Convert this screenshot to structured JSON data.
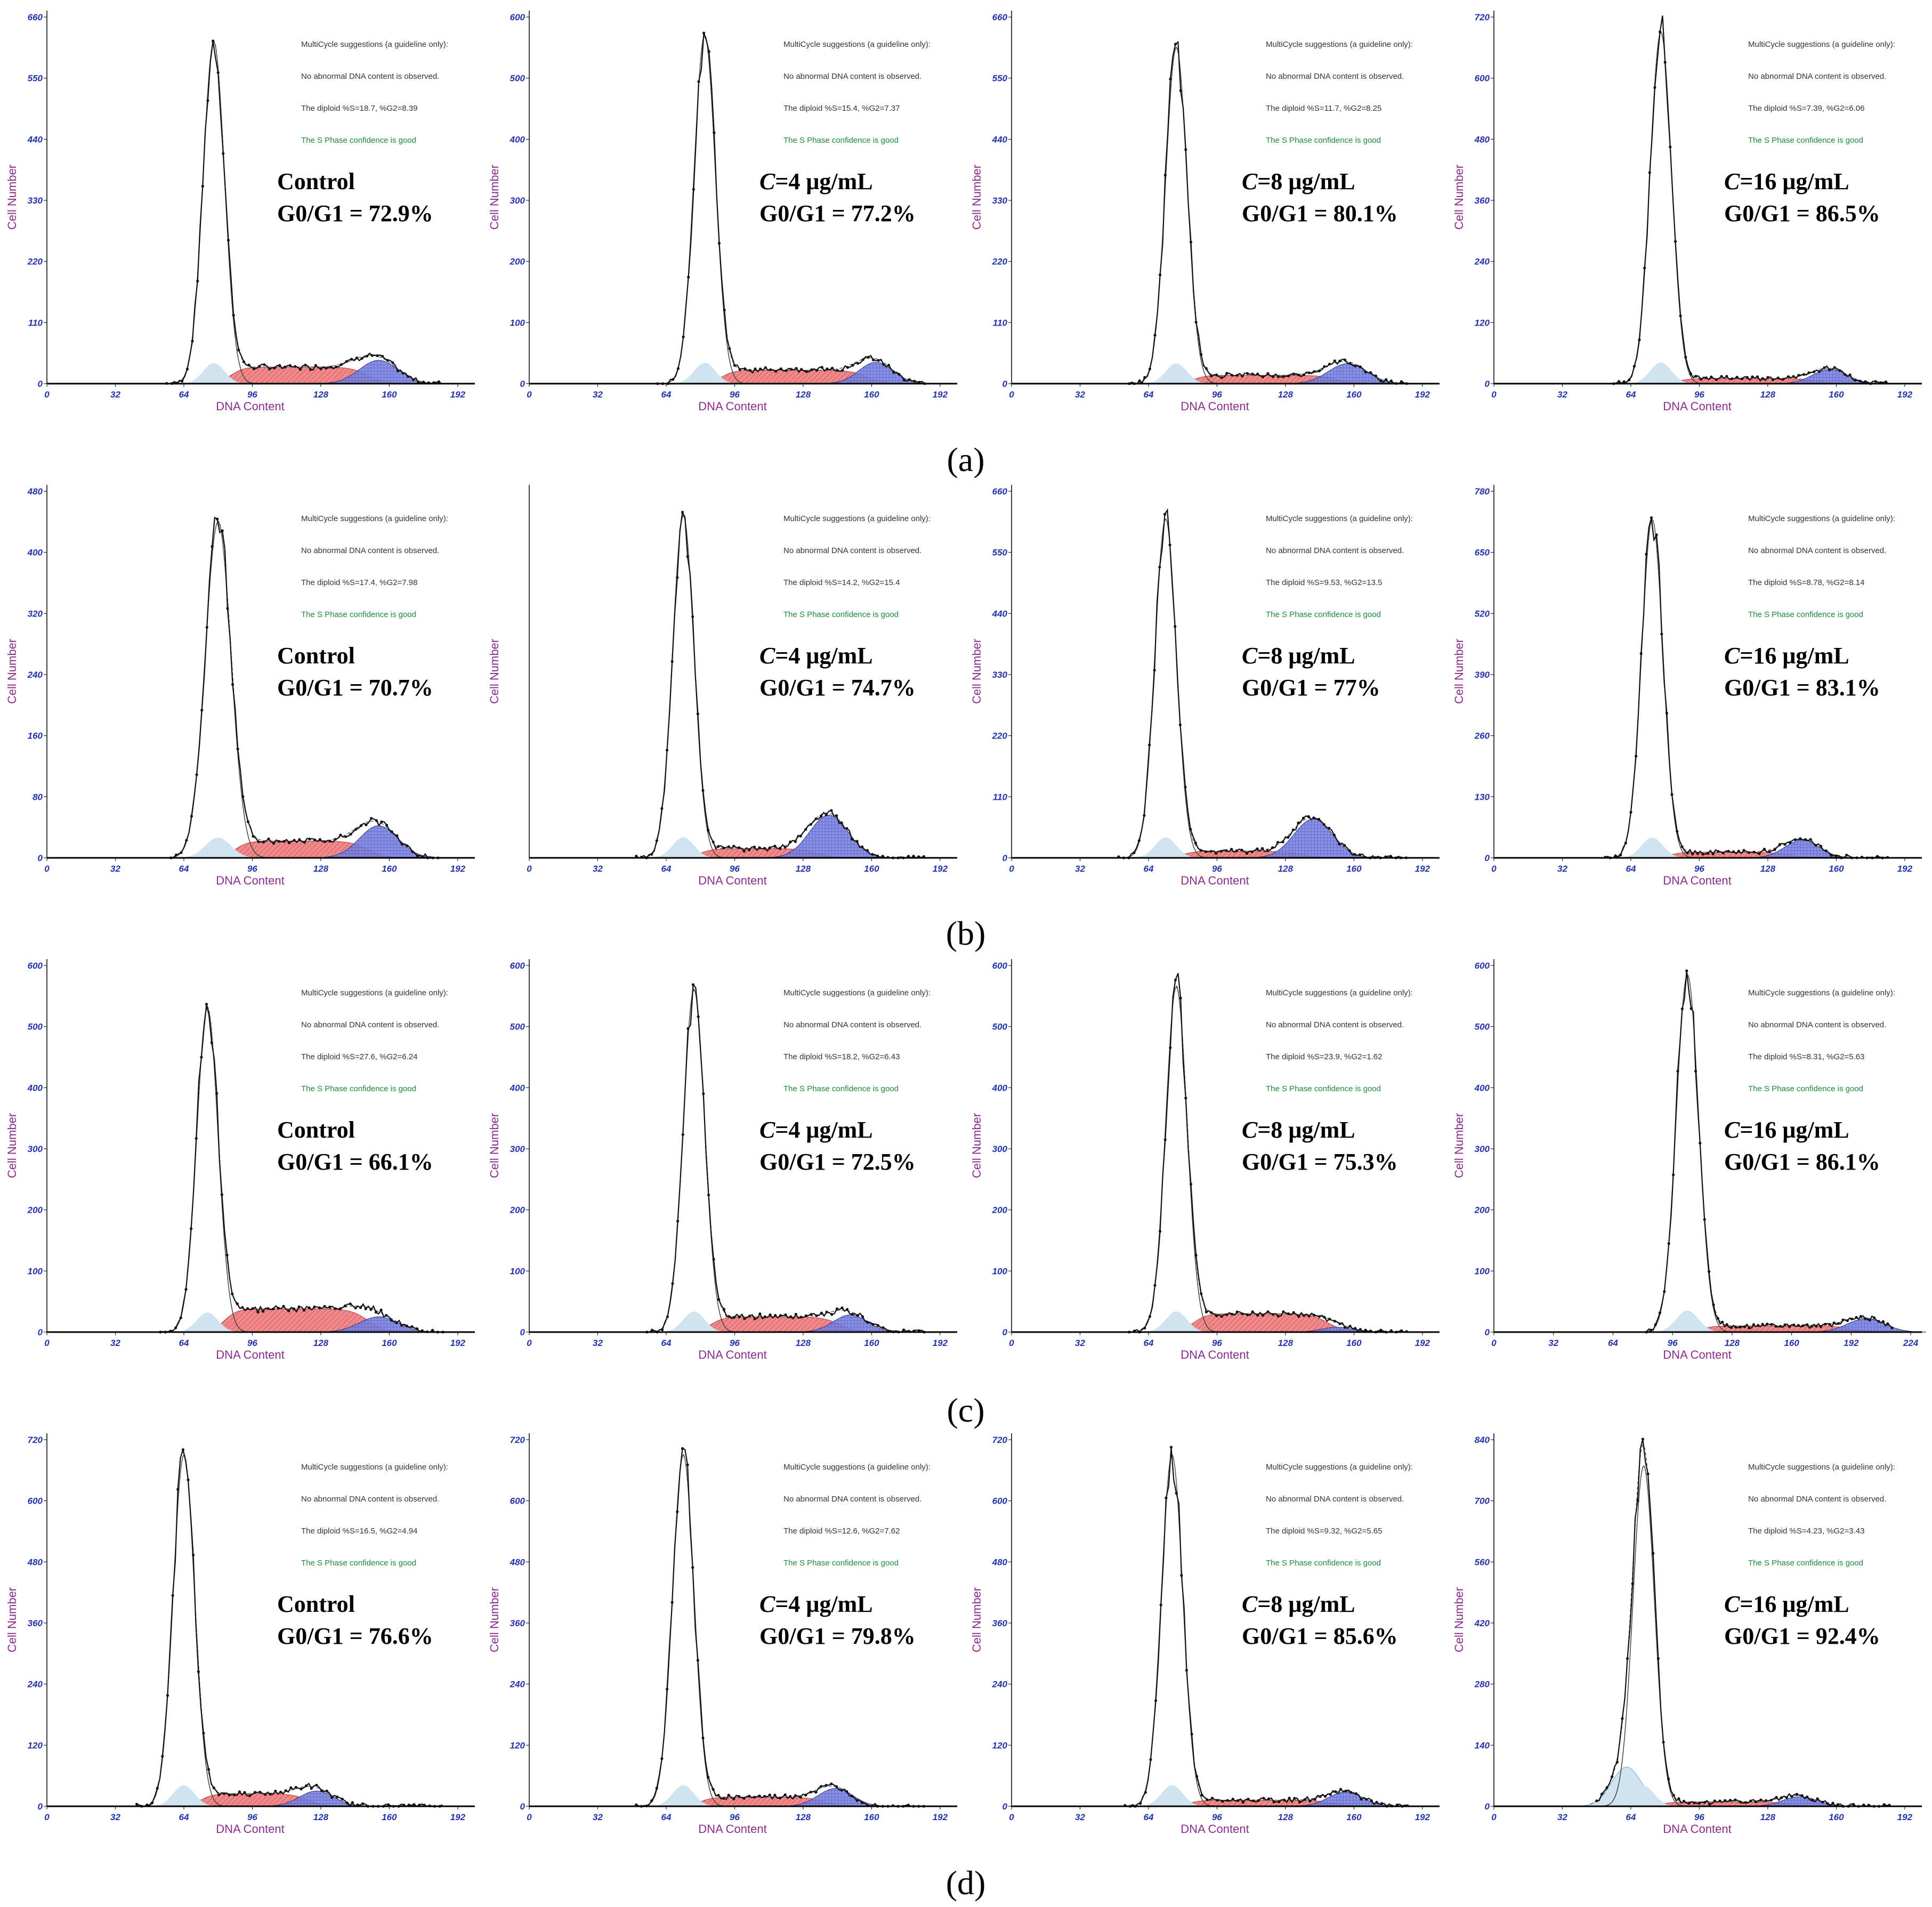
{
  "suggestions": {
    "heading": "MultiCycle suggestions (a guideline only):",
    "abnormal": "No abnormal DNA content is observed.",
    "confidence": "The S Phase confidence is good"
  },
  "colors": {
    "g1_fill": "#cfe3f0",
    "s_fill": "#f08a8a",
    "g2_fill": "#7c84e0",
    "axis": "#000000",
    "tick_text": "#2233aa",
    "axis_label": "#8a2c8a",
    "confidence_text": "#1d8a3a"
  },
  "chart_data": [
    {
      "type": "area",
      "row": "(a)",
      "condition": "Control",
      "conc_var": "",
      "conc_value": "",
      "g0g1_label": "G0/G1 = 72.9%",
      "g0g1": 72.9,
      "diploid": "The diploid %S=18.7, %G2=8.39",
      "xlabel": "DNA Content",
      "ylabel": "Cell Number",
      "xticks": [
        0,
        32,
        64,
        96,
        128,
        160,
        192
      ],
      "yticks": [
        0,
        110,
        220,
        330,
        440,
        550,
        660
      ],
      "xlim": [
        0,
        200
      ],
      "ylim": [
        0,
        660
      ],
      "peak_x": 78,
      "peak_y": 615,
      "peak_sd": 5,
      "s_y": 30,
      "s_end": 150,
      "g2_x": 155,
      "g2_y": 42,
      "g2_sd": 9,
      "g1b_x": null,
      "g1b_y": 0
    },
    {
      "type": "area",
      "row": "(a)",
      "condition": "",
      "conc_var": "C",
      "conc_value": "=4 μg/mL",
      "g0g1_label": "G0/G1 =  77.2%",
      "g0g1": 77.2,
      "diploid": "The diploid %S=15.4, %G2=7.37",
      "xlabel": "DNA Content",
      "ylabel": "Cell Number",
      "xticks": [
        0,
        32,
        64,
        96,
        128,
        160,
        192
      ],
      "yticks": [
        0,
        100,
        200,
        300,
        400,
        500,
        600
      ],
      "xlim": [
        0,
        200
      ],
      "ylim": [
        0,
        600
      ],
      "peak_x": 82,
      "peak_y": 570,
      "peak_sd": 5,
      "s_y": 22,
      "s_end": 158,
      "g2_x": 162,
      "g2_y": 35,
      "g2_sd": 8,
      "g1b_x": null,
      "g1b_y": 0
    },
    {
      "type": "area",
      "row": "(a)",
      "condition": "",
      "conc_var": "C",
      "conc_value": "=8 μg/mL",
      "g0g1_label": "G0/G1 =  80.1%",
      "g0g1": 80.1,
      "diploid": "The diploid %S=11.7, %G2=8.25",
      "xlabel": "DNA Content",
      "ylabel": "Cell Number",
      "xticks": [
        0,
        32,
        64,
        96,
        128,
        160,
        192
      ],
      "yticks": [
        0,
        110,
        220,
        330,
        440,
        550,
        660
      ],
      "xlim": [
        0,
        200
      ],
      "ylim": [
        0,
        660
      ],
      "peak_x": 77,
      "peak_y": 605,
      "peak_sd": 5,
      "s_y": 15,
      "s_end": 152,
      "g2_x": 157,
      "g2_y": 36,
      "g2_sd": 9,
      "g1b_x": null,
      "g1b_y": 0
    },
    {
      "type": "area",
      "row": "(a)",
      "condition": "",
      "conc_var": "C",
      "conc_value": "=16 μg/mL",
      "g0g1_label": "G0/G1 =  86.5%",
      "g0g1": 86.5,
      "diploid": "The diploid %S=7.39, %G2=6.06",
      "xlabel": "DNA Content",
      "ylabel": "Cell Number",
      "xticks": [
        0,
        32,
        64,
        96,
        128,
        160,
        192
      ],
      "yticks": [
        0,
        120,
        240,
        360,
        480,
        600,
        720
      ],
      "xlim": [
        0,
        200
      ],
      "ylim": [
        0,
        720
      ],
      "peak_x": 78,
      "peak_y": 690,
      "peak_sd": 5,
      "s_y": 10,
      "s_end": 152,
      "g2_x": 157,
      "g2_y": 28,
      "g2_sd": 8,
      "g1b_x": null,
      "g1b_y": 0
    },
    {
      "type": "area",
      "row": "(b)",
      "condition": "Control",
      "conc_var": "",
      "conc_value": "",
      "g0g1_label": "G0/G1 = 70.7%",
      "g0g1": 70.7,
      "diploid": "The diploid %S=17.4, %G2=7.98",
      "xlabel": "DNA Content",
      "ylabel": "Cell Number",
      "xticks": [
        0,
        32,
        64,
        96,
        128,
        160,
        192
      ],
      "yticks": [
        0,
        80,
        160,
        240,
        320,
        400,
        480
      ],
      "xlim": [
        0,
        200
      ],
      "ylim": [
        0,
        480
      ],
      "peak_x": 80,
      "peak_y": 440,
      "peak_sd": 6,
      "s_y": 22,
      "s_end": 150,
      "g2_x": 155,
      "g2_y": 42,
      "g2_sd": 9,
      "g1b_x": null,
      "g1b_y": 0
    },
    {
      "type": "area",
      "row": "(b)",
      "condition": "",
      "conc_var": "C",
      "conc_value": "=4 μg/mL",
      "g0g1_label": "G0/G1 =  74.7%",
      "g0g1": 74.7,
      "diploid": "The diploid %S=14.2, %G2=15.4",
      "xlabel": "DNA Content",
      "ylabel": "Cell Number",
      "xticks": [
        0,
        32,
        64,
        96,
        128,
        160,
        192
      ],
      "yticks": [],
      "xlim": [
        0,
        200
      ],
      "ylim": [
        0,
        600
      ],
      "peak_x": 72,
      "peak_y": 560,
      "peak_sd": 5,
      "s_y": 15,
      "s_end": 135,
      "g2_x": 140,
      "g2_y": 70,
      "g2_sd": 9,
      "g1b_x": null,
      "g1b_y": 0
    },
    {
      "type": "area",
      "row": "(b)",
      "condition": "",
      "conc_var": "C",
      "conc_value": "=8 μg/mL",
      "g0g1_label": "G0/G1 =  77%",
      "g0g1": 77,
      "diploid": "The diploid %S=9.53, %G2=13.5",
      "xlabel": "DNA Content",
      "ylabel": "Cell Number",
      "xticks": [
        0,
        32,
        64,
        96,
        128,
        160,
        192
      ],
      "yticks": [
        0,
        110,
        220,
        330,
        440,
        550,
        660
      ],
      "xlim": [
        0,
        200
      ],
      "ylim": [
        0,
        660
      ],
      "peak_x": 72,
      "peak_y": 610,
      "peak_sd": 5,
      "s_y": 12,
      "s_end": 136,
      "g2_x": 141,
      "g2_y": 70,
      "g2_sd": 9,
      "g1b_x": null,
      "g1b_y": 0
    },
    {
      "type": "area",
      "row": "(b)",
      "condition": "",
      "conc_var": "C",
      "conc_value": "=16 μg/mL",
      "g0g1_label": "G0/G1 =  83.1%",
      "g0g1": 83.1,
      "diploid": "The diploid %S=8.78, %G2=8.14",
      "xlabel": "DNA Content",
      "ylabel": "Cell Number",
      "xticks": [
        0,
        32,
        64,
        96,
        128,
        160,
        192
      ],
      "yticks": [
        0,
        130,
        260,
        390,
        520,
        650,
        780
      ],
      "xlim": [
        0,
        200
      ],
      "ylim": [
        0,
        780
      ],
      "peak_x": 74,
      "peak_y": 720,
      "peak_sd": 5,
      "s_y": 12,
      "s_end": 138,
      "g2_x": 144,
      "g2_y": 38,
      "g2_sd": 8,
      "g1b_x": null,
      "g1b_y": 0
    },
    {
      "type": "area",
      "row": "(c)",
      "condition": "Control",
      "conc_var": "",
      "conc_value": "",
      "g0g1_label": "G0/G1 = 66.1%",
      "g0g1": 66.1,
      "diploid": "The diploid %S=27.6, %G2=6.24",
      "xlabel": "DNA Content",
      "ylabel": "Cell Number",
      "xticks": [
        0,
        32,
        64,
        96,
        128,
        160,
        192
      ],
      "yticks": [
        0,
        100,
        200,
        300,
        400,
        500,
        600
      ],
      "xlim": [
        0,
        200
      ],
      "ylim": [
        0,
        600
      ],
      "peak_x": 75,
      "peak_y": 530,
      "peak_sd": 5,
      "s_y": 38,
      "s_end": 150,
      "g2_x": 155,
      "g2_y": 25,
      "g2_sd": 9,
      "g1b_x": null,
      "g1b_y": 0
    },
    {
      "type": "area",
      "row": "(c)",
      "condition": "",
      "conc_var": "C",
      "conc_value": "=4 μg/mL",
      "g0g1_label": "G0/G1 =  72.5%",
      "g0g1": 72.5,
      "diploid": "The diploid %S=18.2, %G2=6.43",
      "xlabel": "DNA Content",
      "ylabel": "Cell Number",
      "xticks": [
        0,
        32,
        64,
        96,
        128,
        160,
        192
      ],
      "yticks": [
        0,
        100,
        200,
        300,
        400,
        500,
        600
      ],
      "xlim": [
        0,
        200
      ],
      "ylim": [
        0,
        600
      ],
      "peak_x": 77,
      "peak_y": 560,
      "peak_sd": 5,
      "s_y": 25,
      "s_end": 145,
      "g2_x": 150,
      "g2_y": 28,
      "g2_sd": 8,
      "g1b_x": null,
      "g1b_y": 0
    },
    {
      "type": "area",
      "row": "(c)",
      "condition": "",
      "conc_var": "C",
      "conc_value": "=8 μg/mL",
      "g0g1_label": "G0/G1 =  75.3%",
      "g0g1": 75.3,
      "diploid": "The diploid %S=23.9, %G2=1.62",
      "xlabel": "DNA Content",
      "ylabel": "Cell Number",
      "xticks": [
        0,
        32,
        64,
        96,
        128,
        160,
        192
      ],
      "yticks": [
        0,
        100,
        200,
        300,
        400,
        500,
        600
      ],
      "xlim": [
        0,
        200
      ],
      "ylim": [
        0,
        600
      ],
      "peak_x": 77,
      "peak_y": 565,
      "peak_sd": 5,
      "s_y": 30,
      "s_end": 148,
      "g2_x": 152,
      "g2_y": 8,
      "g2_sd": 7,
      "g1b_x": null,
      "g1b_y": 0
    },
    {
      "type": "area",
      "row": "(c)",
      "condition": "",
      "conc_var": "C",
      "conc_value": "=16 μg/mL",
      "g0g1_label": "G0/G1 =  86.1%",
      "g0g1": 86.1,
      "diploid": "The diploid %S=8.31, %G2=5.63",
      "xlabel": "DNA Content",
      "ylabel": "Cell Number",
      "xticks": [
        0,
        32,
        64,
        96,
        128,
        160,
        192,
        224
      ],
      "yticks": [
        0,
        100,
        200,
        300,
        400,
        500,
        600
      ],
      "xlim": [
        0,
        230
      ],
      "ylim": [
        0,
        600
      ],
      "peak_x": 104,
      "peak_y": 585,
      "peak_sd": 6,
      "s_y": 10,
      "s_end": 192,
      "g2_x": 200,
      "g2_y": 22,
      "g2_sd": 10,
      "g1b_x": null,
      "g1b_y": 0
    },
    {
      "type": "area",
      "row": "(d)",
      "condition": "Control",
      "conc_var": "",
      "conc_value": "",
      "g0g1_label": "G0/G1 = 76.6%",
      "g0g1": 76.6,
      "diploid": "The diploid %S=16.5, %G2=4.94",
      "xlabel": "DNA Content",
      "ylabel": "Cell Number",
      "xticks": [
        0,
        32,
        64,
        96,
        128,
        160,
        192
      ],
      "yticks": [
        0,
        120,
        240,
        360,
        480,
        600,
        720
      ],
      "xlim": [
        0,
        200
      ],
      "ylim": [
        0,
        720
      ],
      "peak_x": 64,
      "peak_y": 690,
      "peak_sd": 5,
      "s_y": 25,
      "s_end": 122,
      "g2_x": 126,
      "g2_y": 30,
      "g2_sd": 8,
      "g1b_x": null,
      "g1b_y": 0
    },
    {
      "type": "area",
      "row": "(d)",
      "condition": "",
      "conc_var": "C",
      "conc_value": "=4 μg/mL",
      "g0g1_label": "G0/G1 =  79.8%",
      "g0g1": 79.8,
      "diploid": "The diploid %S=12.6, %G2=7.62",
      "xlabel": "DNA Content",
      "ylabel": "Cell Number",
      "xticks": [
        0,
        32,
        64,
        96,
        128,
        160,
        192
      ],
      "yticks": [
        0,
        120,
        240,
        360,
        480,
        600,
        720
      ],
      "xlim": [
        0,
        200
      ],
      "ylim": [
        0,
        720
      ],
      "peak_x": 72,
      "peak_y": 690,
      "peak_sd": 5,
      "s_y": 18,
      "s_end": 138,
      "g2_x": 143,
      "g2_y": 35,
      "g2_sd": 8,
      "g1b_x": null,
      "g1b_y": 0
    },
    {
      "type": "area",
      "row": "(d)",
      "condition": "",
      "conc_var": "C",
      "conc_value": "=8 μg/mL",
      "g0g1_label": "G0/G1 =  85.6%",
      "g0g1": 85.6,
      "diploid": "The diploid %S=9.32, %G2=5.65",
      "xlabel": "DNA Content",
      "ylabel": "Cell Number",
      "xticks": [
        0,
        32,
        64,
        96,
        128,
        160,
        192
      ],
      "yticks": [
        0,
        120,
        240,
        360,
        480,
        600,
        720
      ],
      "xlim": [
        0,
        200
      ],
      "ylim": [
        0,
        720
      ],
      "peak_x": 75,
      "peak_y": 690,
      "peak_sd": 5,
      "s_y": 12,
      "s_end": 150,
      "g2_x": 156,
      "g2_y": 28,
      "g2_sd": 8,
      "g1b_x": null,
      "g1b_y": 0
    },
    {
      "type": "area",
      "row": "(d)",
      "condition": "",
      "conc_var": "C",
      "conc_value": "=16 μg/mL",
      "g0g1_label": "G0/G1 =  92.4%",
      "g0g1": 92.4,
      "diploid": "The diploid %S=4.23, %G2=3.43",
      "xlabel": "DNA Content",
      "ylabel": "Cell Number",
      "xticks": [
        0,
        32,
        64,
        96,
        128,
        160,
        192
      ],
      "yticks": [
        0,
        140,
        280,
        420,
        560,
        700,
        840
      ],
      "xlim": [
        0,
        200
      ],
      "ylim": [
        0,
        840
      ],
      "peak_x": 70,
      "peak_y": 780,
      "peak_sd": 5,
      "s_y": 10,
      "s_end": 138,
      "g2_x": 143,
      "g2_y": 22,
      "g2_sd": 8,
      "g1b_x": 62,
      "g1b_y": 90
    }
  ],
  "row_labels": [
    "(a)",
    "(b)",
    "(c)",
    "(d)"
  ]
}
